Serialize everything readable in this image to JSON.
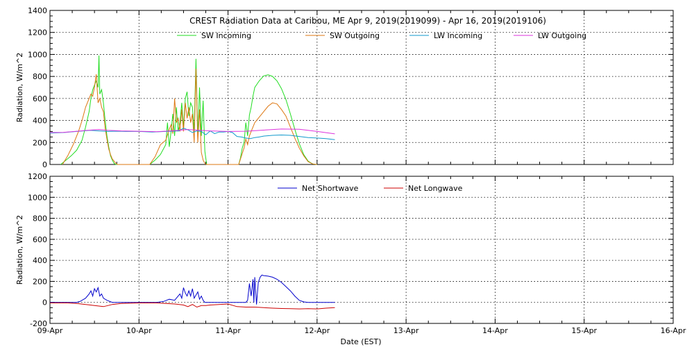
{
  "chart_data": [
    {
      "type": "line",
      "title": "CREST Radiation Data at Caribou, ME   Apr  9, 2019(2019099) - Apr 16, 2019(2019106)",
      "xlabel": "",
      "ylabel": "Radiation, W/m^2",
      "xlim": [
        0,
        7
      ],
      "ylim": [
        0,
        1400
      ],
      "yticks": [
        0,
        200,
        400,
        600,
        800,
        1000,
        1200,
        1400
      ],
      "grid": true,
      "legend": "top",
      "series": [
        {
          "name": "SW Incoming",
          "color": "#22dd22",
          "x": [
            0.12,
            0.18,
            0.24,
            0.3,
            0.36,
            0.4,
            0.44,
            0.46,
            0.48,
            0.5,
            0.52,
            0.54,
            0.55,
            0.56,
            0.58,
            0.6,
            0.62,
            0.64,
            0.66,
            0.68,
            0.7,
            0.72,
            0.74,
            1.12,
            1.18,
            1.24,
            1.3,
            1.32,
            1.34,
            1.36,
            1.38,
            1.4,
            1.42,
            1.44,
            1.46,
            1.48,
            1.5,
            1.52,
            1.54,
            1.56,
            1.58,
            1.6,
            1.62,
            1.64,
            1.66,
            1.68,
            1.7,
            1.72,
            1.74,
            1.76,
            2.12,
            2.14,
            2.16,
            2.18,
            2.2,
            2.22,
            2.24,
            2.26,
            2.28,
            2.3,
            2.35,
            2.4,
            2.45,
            2.5,
            2.55,
            2.6,
            2.65,
            2.7,
            2.75,
            2.8,
            2.85,
            2.9,
            2.95,
            3.0
          ],
          "y": [
            0,
            40,
            80,
            130,
            220,
            340,
            480,
            600,
            680,
            720,
            760,
            700,
            990,
            640,
            680,
            560,
            400,
            260,
            160,
            80,
            40,
            10,
            0,
            0,
            40,
            90,
            180,
            380,
            160,
            300,
            460,
            260,
            520,
            300,
            380,
            560,
            340,
            600,
            660,
            440,
            560,
            520,
            300,
            960,
            250,
            700,
            260,
            580,
            120,
            0,
            0,
            60,
            150,
            200,
            380,
            260,
            450,
            520,
            620,
            700,
            760,
            805,
            815,
            800,
            760,
            690,
            590,
            460,
            320,
            190,
            90,
            30,
            5,
            0
          ]
        },
        {
          "name": "SW Outgoing",
          "color": "#dd7711",
          "x": [
            0.14,
            0.2,
            0.26,
            0.32,
            0.36,
            0.4,
            0.44,
            0.46,
            0.48,
            0.5,
            0.52,
            0.54,
            0.56,
            0.58,
            0.6,
            0.62,
            0.64,
            0.66,
            0.68,
            0.7,
            0.72,
            0.74,
            0.76,
            0.78,
            1.12,
            1.18,
            1.24,
            1.3,
            1.34,
            1.36,
            1.38,
            1.4,
            1.42,
            1.44,
            1.46,
            1.48,
            1.5,
            1.52,
            1.54,
            1.56,
            1.58,
            1.6,
            1.62,
            1.64,
            1.66,
            1.68,
            1.7,
            1.72,
            1.74,
            1.76,
            2.12,
            2.14,
            2.16,
            2.18,
            2.2,
            2.22,
            2.24,
            2.26,
            2.28,
            2.3,
            2.35,
            2.4,
            2.45,
            2.5,
            2.55,
            2.6,
            2.65,
            2.7,
            2.75,
            2.8,
            2.85,
            2.9,
            2.95,
            3.0
          ],
          "y": [
            0,
            80,
            180,
            300,
            400,
            520,
            600,
            640,
            620,
            700,
            820,
            560,
            600,
            520,
            480,
            330,
            230,
            140,
            90,
            50,
            30,
            10,
            0,
            0,
            0,
            70,
            180,
            220,
            320,
            360,
            280,
            600,
            380,
            420,
            300,
            500,
            300,
            560,
            420,
            520,
            380,
            460,
            200,
            870,
            200,
            500,
            110,
            40,
            10,
            0,
            0,
            50,
            100,
            150,
            230,
            180,
            260,
            300,
            340,
            380,
            430,
            480,
            530,
            560,
            550,
            500,
            440,
            340,
            240,
            150,
            80,
            25,
            5,
            0
          ]
        },
        {
          "name": "LW Incoming",
          "color": "#1199cc",
          "x": [
            0.0,
            0.15,
            0.3,
            0.45,
            0.55,
            0.65,
            0.75,
            0.85,
            1.0,
            1.15,
            1.3,
            1.45,
            1.5,
            1.55,
            1.6,
            1.65,
            1.7,
            1.75,
            1.8,
            1.85,
            1.9,
            1.95,
            2.0,
            2.05,
            2.1,
            2.15,
            2.2,
            2.25,
            2.3,
            2.35,
            2.4,
            2.5,
            2.6,
            2.7,
            2.8,
            2.9,
            3.0,
            3.1,
            3.2
          ],
          "y": [
            285,
            290,
            300,
            310,
            305,
            300,
            303,
            300,
            300,
            295,
            300,
            305,
            330,
            315,
            290,
            305,
            300,
            270,
            305,
            280,
            295,
            295,
            300,
            290,
            255,
            250,
            240,
            235,
            245,
            250,
            258,
            265,
            268,
            265,
            255,
            245,
            240,
            235,
            225
          ]
        },
        {
          "name": "LW Outgoing",
          "color": "#dd33dd",
          "x": [
            0.0,
            0.15,
            0.3,
            0.45,
            0.55,
            0.65,
            0.8,
            1.0,
            1.2,
            1.4,
            1.55,
            1.65,
            1.8,
            2.0,
            2.2,
            2.4,
            2.6,
            2.8,
            3.0,
            3.2
          ],
          "y": [
            290,
            292,
            302,
            312,
            318,
            310,
            305,
            302,
            298,
            308,
            318,
            312,
            305,
            300,
            302,
            312,
            322,
            320,
            300,
            278
          ]
        }
      ]
    },
    {
      "type": "line",
      "title": "",
      "xlabel": "Date (EST)",
      "ylabel": "Radiation, W/m^2",
      "xlim": [
        0,
        7
      ],
      "ylim": [
        -200,
        1200
      ],
      "yticks": [
        -200,
        0,
        200,
        400,
        600,
        800,
        1000,
        1200
      ],
      "categories": [
        "09-Apr",
        "10-Apr",
        "11-Apr",
        "12-Apr",
        "13-Apr",
        "14-Apr",
        "15-Apr",
        "16-Apr"
      ],
      "grid": true,
      "legend": "top",
      "series": [
        {
          "name": "Net Shortwave",
          "color": "#0000cc",
          "x": [
            0.0,
            0.3,
            0.34,
            0.4,
            0.44,
            0.46,
            0.48,
            0.5,
            0.52,
            0.54,
            0.56,
            0.58,
            0.6,
            0.64,
            0.7,
            0.76,
            1.2,
            1.28,
            1.34,
            1.4,
            1.44,
            1.46,
            1.48,
            1.5,
            1.52,
            1.54,
            1.56,
            1.58,
            1.6,
            1.62,
            1.64,
            1.66,
            1.68,
            1.7,
            1.72,
            1.74,
            1.76,
            1.8,
            2.1,
            2.2,
            2.22,
            2.24,
            2.26,
            2.28,
            2.29,
            2.3,
            2.32,
            2.34,
            2.36,
            2.38,
            2.4,
            2.45,
            2.5,
            2.55,
            2.6,
            2.65,
            2.7,
            2.75,
            2.8,
            2.85,
            2.9,
            3.0,
            3.2
          ],
          "y": [
            0,
            0,
            10,
            40,
            80,
            110,
            60,
            130,
            100,
            140,
            60,
            80,
            40,
            20,
            0,
            0,
            0,
            10,
            30,
            20,
            60,
            80,
            40,
            140,
            90,
            60,
            110,
            60,
            130,
            40,
            70,
            100,
            30,
            60,
            20,
            0,
            0,
            0,
            0,
            0,
            20,
            180,
            60,
            220,
            0,
            240,
            -20,
            190,
            240,
            260,
            255,
            250,
            240,
            220,
            190,
            150,
            110,
            60,
            20,
            5,
            0,
            0,
            0
          ]
        },
        {
          "name": "Net Longwave",
          "color": "#cc0000",
          "x": [
            0.0,
            0.2,
            0.3,
            0.4,
            0.5,
            0.55,
            0.6,
            0.65,
            0.7,
            0.8,
            1.0,
            1.2,
            1.3,
            1.4,
            1.5,
            1.55,
            1.6,
            1.65,
            1.7,
            1.75,
            1.8,
            1.9,
            2.0,
            2.1,
            2.2,
            2.3,
            2.4,
            2.5,
            2.6,
            2.7,
            2.8,
            2.9,
            3.0,
            3.1,
            3.2
          ],
          "y": [
            -5,
            -5,
            -10,
            -20,
            -30,
            -35,
            -40,
            -30,
            -20,
            -10,
            -5,
            -5,
            -10,
            -15,
            -25,
            -40,
            -20,
            -45,
            -30,
            -30,
            -25,
            -20,
            -15,
            -40,
            -45,
            -45,
            -50,
            -55,
            -58,
            -60,
            -62,
            -60,
            -62,
            -55,
            -50
          ]
        }
      ]
    }
  ]
}
